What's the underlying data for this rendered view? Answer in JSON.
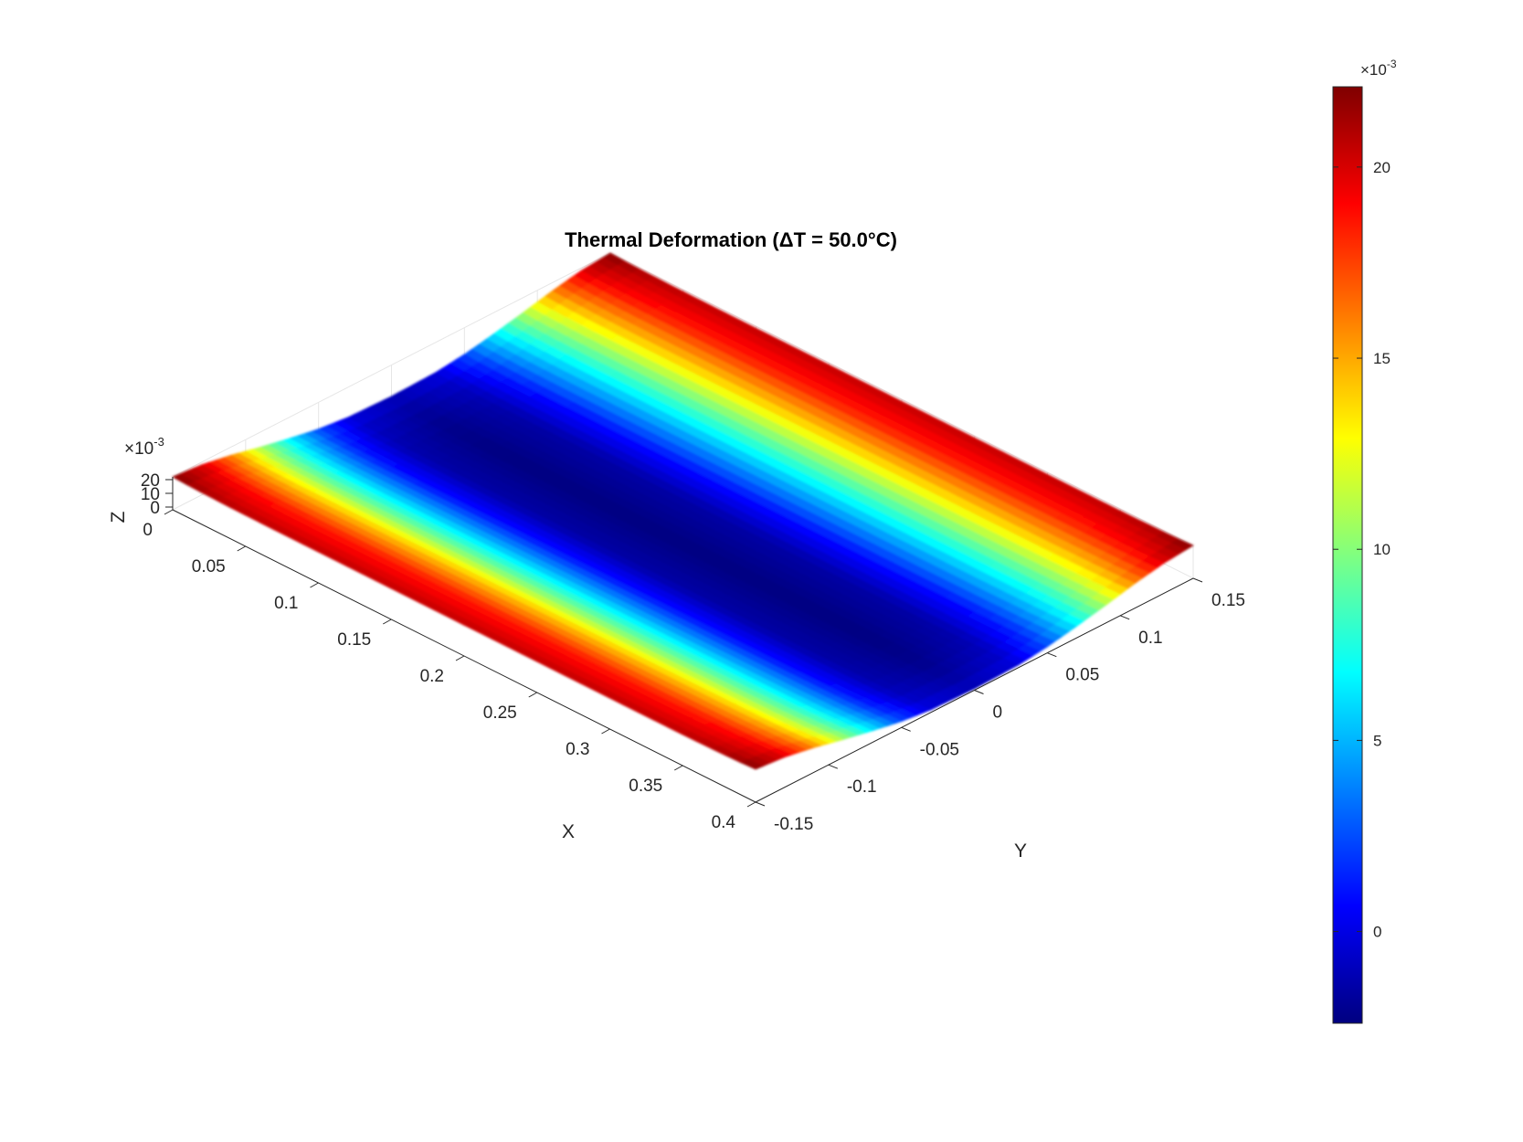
{
  "chart_data": {
    "type": "surface",
    "title": "Thermal Deformation (ΔT = 50.0°C)",
    "xlabel": "X",
    "ylabel": "Y",
    "zlabel": "Z",
    "x_ticks": [
      "0",
      "0.05",
      "0.1",
      "0.15",
      "0.2",
      "0.25",
      "0.3",
      "0.35",
      "0.4"
    ],
    "y_ticks": [
      "-0.15",
      "-0.1",
      "-0.05",
      "0",
      "0.05",
      "0.1",
      "0.15"
    ],
    "z_ticks": [
      "0",
      "10",
      "20"
    ],
    "z_exponent_label": "×10",
    "z_exponent_power": "-3",
    "xlim": [
      0,
      0.4
    ],
    "ylim": [
      -0.15,
      0.15
    ],
    "zlim": [
      -0.002,
      0.022
    ],
    "colormap": "jet",
    "colorbar": {
      "location": "right",
      "ticks": [
        "0",
        "5",
        "10",
        "15",
        "20"
      ],
      "tick_values": [
        0,
        5,
        10,
        15,
        20
      ],
      "range": [
        -2.4,
        22.1
      ],
      "exponent_label": "×10",
      "exponent_power": "-3"
    },
    "surface_profile": {
      "y": [
        -0.15,
        -0.13,
        -0.11,
        -0.09,
        -0.07,
        -0.05,
        -0.03,
        0,
        0.03,
        0.05,
        0.07,
        0.09,
        0.11,
        0.13,
        0.15
      ],
      "z_center_1e3": [
        20.5,
        18.5,
        14.5,
        9.5,
        5.0,
        1.0,
        -1.5,
        -2.4,
        -1.5,
        1.0,
        5.0,
        9.5,
        14.5,
        18.5,
        20.5
      ],
      "z_end_rise_1e3": 1.5
    },
    "grid": true
  }
}
